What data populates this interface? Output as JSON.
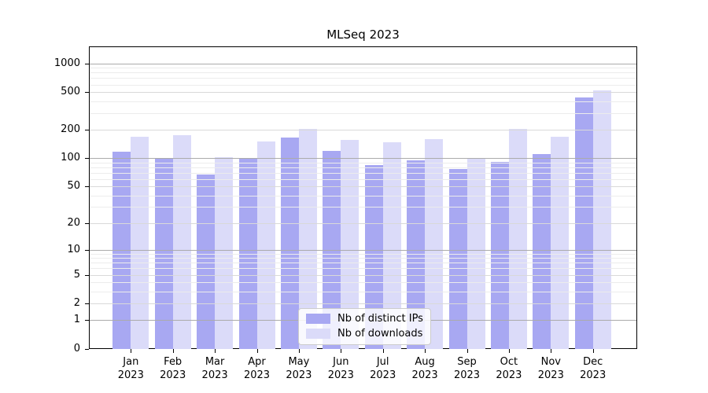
{
  "chart_data": {
    "type": "bar",
    "title": "MLSeq 2023",
    "categories": [
      "Jan",
      "Feb",
      "Mar",
      "Apr",
      "May",
      "Jun",
      "Jul",
      "Aug",
      "Sep",
      "Oct",
      "Nov",
      "Dec"
    ],
    "category_year": "2023",
    "series": [
      {
        "name": "Nb of distinct IPs",
        "color": "#a8a8f2",
        "values": [
          117,
          98,
          67,
          98,
          165,
          120,
          85,
          95,
          77,
          92,
          110,
          435
        ]
      },
      {
        "name": "Nb of downloads",
        "color": "#dbdbf9",
        "values": [
          168,
          175,
          102,
          149,
          206,
          156,
          147,
          158,
          99,
          204,
          169,
          525
        ]
      }
    ],
    "yscale": "log1p",
    "yticks": [
      0,
      1,
      2,
      5,
      10,
      20,
      50,
      100,
      200,
      500,
      1000
    ],
    "minor_yticks": [
      3,
      4,
      6,
      7,
      8,
      9,
      30,
      40,
      60,
      70,
      80,
      90,
      300,
      400,
      600,
      700,
      800,
      900
    ],
    "decade_yticks": [
      1,
      10,
      100,
      1000
    ],
    "ylim": [
      0,
      1480
    ],
    "xlabel": "",
    "ylabel": "",
    "grid": "horizontal",
    "legend_position": "bottom-center-inside",
    "background_color": "#ffffff",
    "axis_color": "#000000"
  }
}
